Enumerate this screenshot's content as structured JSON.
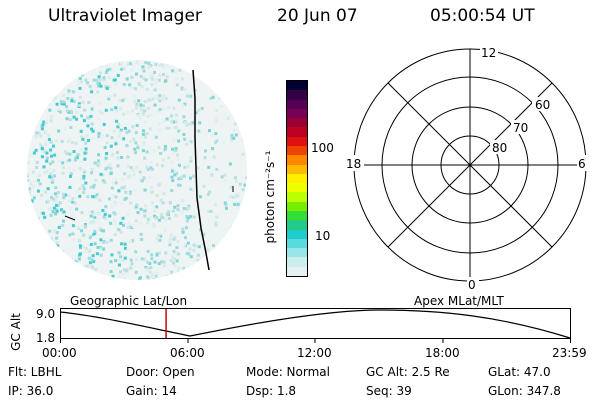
{
  "header": {
    "title": "Ultraviolet Imager",
    "date": "20 Jun 07",
    "time": "05:00:54 UT"
  },
  "colorbar": {
    "unit_label": "photon cm⁻²s⁻¹",
    "ticks": [
      "100",
      "10"
    ],
    "colors": [
      "#000033",
      "#330044",
      "#550055",
      "#770055",
      "#990033",
      "#bb0022",
      "#dd1111",
      "#ee4400",
      "#ff8800",
      "#ffbb00",
      "#ffee00",
      "#eeff00",
      "#bbff00",
      "#77ee00",
      "#33dd33",
      "#22cc88",
      "#22cccc",
      "#55dddd",
      "#99e6e6",
      "#cceeee",
      "#e6f2f2"
    ]
  },
  "polar_plot": {
    "hour_labels": [
      "12",
      "18",
      "6",
      "0"
    ],
    "lat_labels": [
      "60",
      "70",
      "80"
    ]
  },
  "orbit_strip": {
    "left_label": "Geographic Lat/Lon",
    "right_label": "Apex MLat/MLT",
    "y_axis_label": "GC Alt",
    "y_ticks": [
      "9.0",
      "1.8"
    ],
    "x_ticks": [
      "00:00",
      "06:00",
      "12:00",
      "18:00",
      "23:59"
    ],
    "current_time_fraction": 0.208
  },
  "info": {
    "flt": "Flt: LBHL",
    "door": "Door: Open",
    "mode": "Mode: Normal",
    "gc_alt": "GC Alt: 2.5 Re",
    "glat": "GLat: 47.0",
    "ip": "IP: 36.0",
    "gain": "Gain: 14",
    "dsp": "Dsp: 1.8",
    "seq": "Seq: 39",
    "glon": "GLon: 347.8"
  }
}
